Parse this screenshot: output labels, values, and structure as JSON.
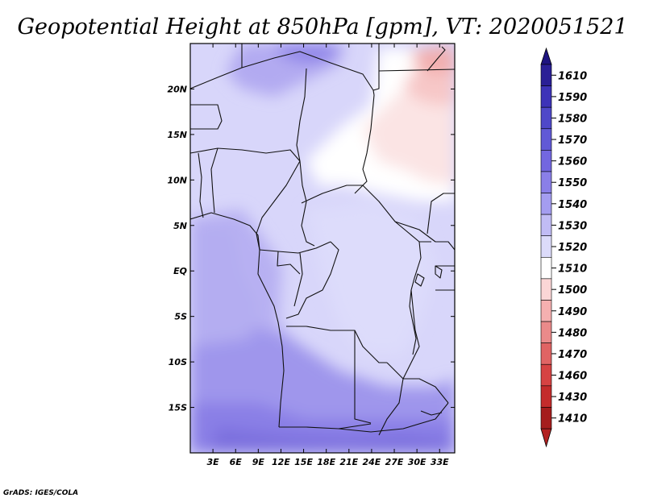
{
  "title": "Geopotential Height at 850hPa [gpm], VT: 2020051521",
  "credit": "GrADS: IGES/COLA",
  "map": {
    "lon_range": [
      0,
      35
    ],
    "lat_range": [
      -20,
      25
    ],
    "lon_ticks": [
      "3E",
      "6E",
      "9E",
      "12E",
      "15E",
      "18E",
      "21E",
      "24E",
      "27E",
      "30E",
      "33E"
    ],
    "lat_ticks": [
      "20N",
      "15N",
      "10N",
      "5N",
      "EQ",
      "5S",
      "10S",
      "15S"
    ]
  },
  "colorbar": {
    "levels": [
      "1610",
      "1590",
      "1580",
      "1570",
      "1560",
      "1550",
      "1540",
      "1530",
      "1520",
      "1510",
      "1500",
      "1490",
      "1480",
      "1470",
      "1460",
      "1430",
      "1410"
    ],
    "colors": [
      "#2a1f96",
      "#3d33b8",
      "#4f48c9",
      "#6159d6",
      "#7367e0",
      "#8a7fe8",
      "#a49df0",
      "#c1bcf5",
      "#dcdbfa",
      "#ffffff",
      "#fbd6d6",
      "#f5b0b0",
      "#ea8a8a",
      "#e06464",
      "#d64343",
      "#c42c2c",
      "#a51d1d"
    ],
    "top_arrow_color": "#1e1480",
    "bottom_arrow_color": "#b22222"
  }
}
